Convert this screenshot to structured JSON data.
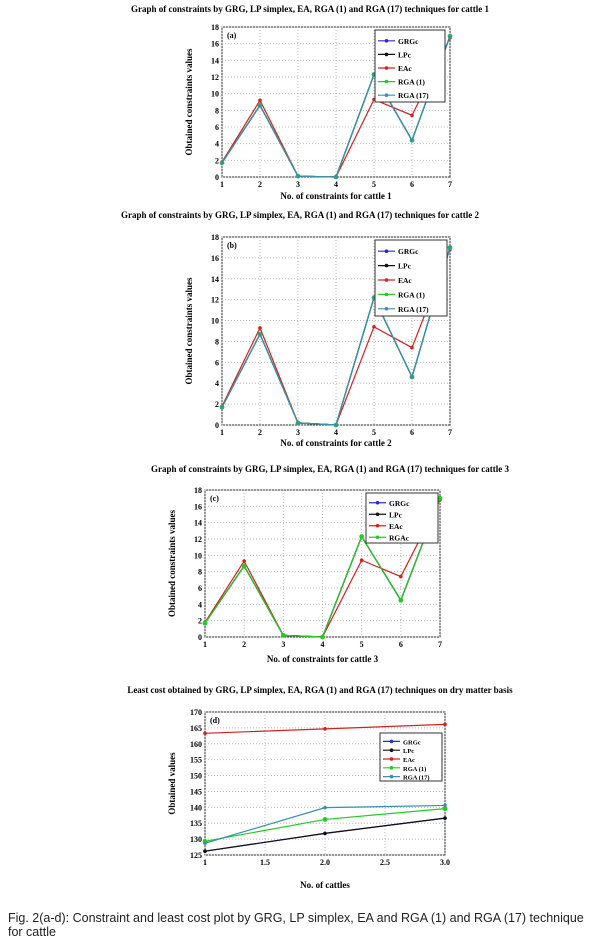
{
  "caption": "Fig. 2(a-d): Constraint and least cost plot by GRG, LP simplex, EA and RGA (1) and RGA (17) technique for cattle",
  "colors": {
    "GRG": "#2b2bd6",
    "LP": "#111111",
    "EA": "#d62020",
    "RGA1": "#22cc22",
    "RGA17": "#3a8fb0"
  },
  "chart_data": [
    {
      "type": "line",
      "panel": "(a)",
      "title": "Graph of constraints by GRG, LP simplex, EA, RGA (1) and RGA (17) techniques for cattle 1",
      "xlabel": "No.  of constraints for cattle 1",
      "ylabel": "Obtained constraints values",
      "xlim": [
        1,
        7
      ],
      "ylim": [
        0,
        18
      ],
      "xticks": [
        "1",
        "2",
        "3",
        "4",
        "5",
        "6",
        "7"
      ],
      "yticks": [
        "0",
        "2",
        "4",
        "6",
        "8",
        "10",
        "12",
        "14",
        "16",
        "18"
      ],
      "grid": true,
      "legend": "top-right",
      "x": [
        1,
        2,
        3,
        4,
        5,
        6,
        7
      ],
      "series": [
        {
          "name": "GRGc",
          "color": "GRG",
          "values": [
            1.7,
            8.6,
            0.1,
            0,
            12.3,
            4.4,
            16.9
          ]
        },
        {
          "name": "LPc",
          "color": "LP",
          "values": [
            1.7,
            8.6,
            0.1,
            0,
            12.3,
            4.4,
            16.9
          ]
        },
        {
          "name": "EAc",
          "color": "EA",
          "values": [
            1.8,
            9.2,
            0.1,
            0,
            9.3,
            7.4,
            16.7
          ]
        },
        {
          "name": "RGA (1)",
          "color": "RGA1",
          "values": [
            1.7,
            8.6,
            0.1,
            0,
            12.3,
            4.4,
            16.9
          ]
        },
        {
          "name": "RGA (17)",
          "color": "RGA17",
          "values": [
            1.7,
            8.6,
            0.1,
            0,
            12.3,
            4.4,
            16.9
          ]
        }
      ]
    },
    {
      "type": "line",
      "panel": "(b)",
      "title": "Graph of  constraints by GRG, LP simplex, EA,  RGA (1)  and RGA (17) techniques for cattle 2",
      "xlabel": "No.  of constraints for cattle 2",
      "ylabel": "Obtained constraints values",
      "xlim": [
        1,
        7
      ],
      "ylim": [
        0,
        18
      ],
      "xticks": [
        "1",
        "2",
        "3",
        "4",
        "5",
        "6",
        "7"
      ],
      "yticks": [
        "0",
        "2",
        "4",
        "6",
        "8",
        "10",
        "12",
        "14",
        "16",
        "18"
      ],
      "grid": true,
      "legend": "top-right",
      "x": [
        1,
        2,
        3,
        4,
        5,
        6,
        7
      ],
      "series": [
        {
          "name": "GRGc",
          "color": "GRG",
          "values": [
            1.7,
            8.7,
            0.2,
            0,
            12.2,
            4.6,
            17.0
          ]
        },
        {
          "name": "LPc",
          "color": "LP",
          "values": [
            1.7,
            8.7,
            0.2,
            0,
            12.2,
            4.6,
            17.0
          ]
        },
        {
          "name": "EAc",
          "color": "EA",
          "values": [
            1.8,
            9.3,
            0.2,
            0,
            9.4,
            7.4,
            16.8
          ]
        },
        {
          "name": "RGA (1)",
          "color": "RGA1",
          "values": [
            1.7,
            8.7,
            0.2,
            0,
            12.2,
            4.6,
            17.0
          ]
        },
        {
          "name": "RGA (17)",
          "color": "RGA17",
          "values": [
            1.7,
            8.7,
            0.2,
            0,
            12.2,
            4.6,
            17.0
          ]
        }
      ]
    },
    {
      "type": "line",
      "panel": "(c)",
      "title": "Graph of  constraints by GRG, LP simplex, EA, RGA (1) and RGA (17) techniques for cattle 3",
      "xlabel": "No.  of constraints for cattle 3",
      "ylabel": "Obtained constraints values",
      "xlim": [
        1,
        7
      ],
      "ylim": [
        0,
        18
      ],
      "xticks": [
        "1",
        "2",
        "3",
        "4",
        "5",
        "6",
        "7"
      ],
      "yticks": [
        "0",
        "2",
        "4",
        "6",
        "8",
        "10",
        "12",
        "14",
        "16",
        "18"
      ],
      "grid": true,
      "legend": "top-right",
      "x": [
        1,
        2,
        3,
        4,
        5,
        6,
        7
      ],
      "series": [
        {
          "name": "GRGc",
          "color": "GRG",
          "values": [
            1.7,
            8.7,
            0.2,
            0,
            12.3,
            4.5,
            17.0
          ]
        },
        {
          "name": "LPc",
          "color": "LP",
          "values": [
            1.7,
            8.7,
            0.2,
            0,
            12.3,
            4.5,
            17.0
          ]
        },
        {
          "name": "EAc",
          "color": "EA",
          "values": [
            1.8,
            9.3,
            0.2,
            0,
            9.4,
            7.4,
            16.8
          ]
        },
        {
          "name": "RGAc",
          "color": "RGA1",
          "values": [
            1.7,
            8.7,
            0.2,
            0,
            12.3,
            4.5,
            17.0
          ]
        }
      ]
    },
    {
      "type": "line",
      "panel": "(d)",
      "title": "Least cost obtained by GRG, LP simplex, EA, RGA (1)  and RGA (17) techniques on dry matter basis",
      "xlabel": "No. of cattles",
      "ylabel": "Obtained values",
      "xlim": [
        1,
        3
      ],
      "ylim": [
        125,
        170
      ],
      "xticks": [
        "1",
        "1.5",
        "2.0",
        "2.5",
        "3.0"
      ],
      "xtickvals": [
        1,
        1.5,
        2,
        2.5,
        3
      ],
      "yticks": [
        "125",
        "130",
        "135",
        "140",
        "145",
        "150",
        "155",
        "160",
        "165",
        "170"
      ],
      "grid": true,
      "legend": "right",
      "x": [
        1,
        2,
        3
      ],
      "series": [
        {
          "name": "GRGc",
          "color": "GRG",
          "values": [
            126.2,
            131.8,
            136.6
          ]
        },
        {
          "name": "LPc",
          "color": "LP",
          "values": [
            126.2,
            131.8,
            136.6
          ]
        },
        {
          "name": "EAc",
          "color": "EA",
          "values": [
            163.3,
            164.7,
            166.1
          ]
        },
        {
          "name": "RGA (1)",
          "color": "RGA1",
          "values": [
            129.3,
            136.2,
            139.6
          ]
        },
        {
          "name": "RGA (17)",
          "color": "RGA17",
          "values": [
            128.7,
            139.9,
            140.6
          ]
        }
      ]
    }
  ]
}
